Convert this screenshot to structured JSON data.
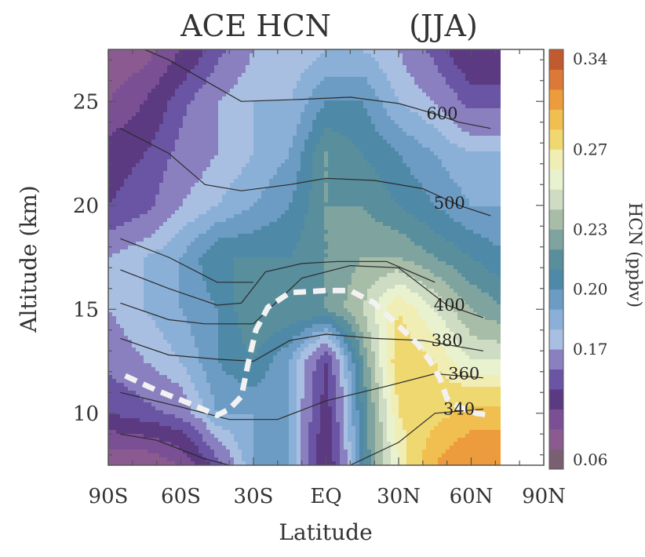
{
  "chart_data": {
    "type": "heatmap",
    "title": {
      "left": "ACE HCN",
      "right": "(JJA)"
    },
    "xlabel": "Latitude",
    "ylabel": "Altitude (km)",
    "xlim": [
      -90,
      90
    ],
    "ylim": [
      7.5,
      27.5
    ],
    "x_ticks": [
      {
        "value": -90,
        "label": "90S"
      },
      {
        "value": -60,
        "label": "60S"
      },
      {
        "value": -30,
        "label": "30S"
      },
      {
        "value": 0,
        "label": "EQ"
      },
      {
        "value": 30,
        "label": "30N"
      },
      {
        "value": 60,
        "label": "60N"
      },
      {
        "value": 90,
        "label": "90N"
      }
    ],
    "y_ticks": [
      {
        "value": 10,
        "label": "10"
      },
      {
        "value": 15,
        "label": "15"
      },
      {
        "value": 20,
        "label": "20"
      },
      {
        "value": 25,
        "label": "25"
      }
    ],
    "colorbar": {
      "label": "HCN (ppbv)",
      "vmin": 0.06,
      "vmax": 0.34,
      "levels": [
        0.06,
        0.08,
        0.1,
        0.12,
        0.14,
        0.155,
        0.17,
        0.18,
        0.19,
        0.2,
        0.21,
        0.22,
        0.23,
        0.24,
        0.25,
        0.26,
        0.27,
        0.285,
        0.3,
        0.32,
        0.34
      ],
      "tick_labels": [
        "0.06",
        "0.17",
        "0.20",
        "0.23",
        "0.27",
        "0.34"
      ],
      "colors": [
        "#7a5f72",
        "#8a5a90",
        "#7b4f94",
        "#5b3a82",
        "#6a55a4",
        "#8a80c0",
        "#a9bfe2",
        "#8ab0d8",
        "#6c9cc4",
        "#4f89a8",
        "#598e9c",
        "#7fa4a0",
        "#a8bda8",
        "#cfdcc4",
        "#e9f2cf",
        "#f1eeb5",
        "#f0d870",
        "#f0bf50",
        "#ec9c3c",
        "#dc7838",
        "#c25a30"
      ]
    },
    "grid_lat": [
      -90,
      -75,
      -60,
      -45,
      -30,
      -15,
      0,
      15,
      30,
      45,
      60,
      75,
      90
    ],
    "grid_alt": [
      7.5,
      10,
      12.5,
      15,
      17.5,
      20,
      22.5,
      25,
      27.5
    ],
    "hcn_grid": [
      [
        0.08,
        0.08,
        0.1,
        0.15,
        0.19,
        0.19,
        0.12,
        0.21,
        0.26,
        0.3,
        0.32,
        0.32,
        null
      ],
      [
        0.14,
        0.15,
        0.16,
        0.19,
        0.19,
        0.19,
        0.13,
        0.21,
        0.27,
        0.28,
        0.29,
        0.29,
        null
      ],
      [
        0.16,
        0.17,
        0.18,
        0.2,
        0.21,
        0.19,
        0.14,
        0.22,
        0.28,
        0.27,
        0.25,
        0.25,
        null
      ],
      [
        0.17,
        0.18,
        0.19,
        0.2,
        0.22,
        0.22,
        0.22,
        0.24,
        0.27,
        0.25,
        0.23,
        0.22,
        null
      ],
      [
        0.17,
        0.18,
        0.19,
        0.21,
        0.21,
        0.21,
        0.22,
        0.23,
        0.23,
        0.22,
        0.21,
        0.2,
        null
      ],
      [
        0.14,
        0.15,
        0.17,
        0.18,
        0.19,
        0.2,
        0.22,
        0.22,
        0.21,
        0.2,
        0.19,
        0.19,
        null
      ],
      [
        0.13,
        0.14,
        0.16,
        0.17,
        0.18,
        0.19,
        0.22,
        0.21,
        0.2,
        0.19,
        0.18,
        0.18,
        null
      ],
      [
        0.1,
        0.12,
        0.15,
        0.17,
        0.18,
        0.18,
        0.2,
        0.2,
        0.18,
        0.17,
        0.15,
        0.15,
        null
      ],
      [
        0.08,
        0.09,
        0.12,
        0.15,
        0.17,
        0.17,
        0.18,
        0.18,
        0.17,
        0.15,
        0.12,
        0.12,
        null
      ]
    ],
    "theta_contours": [
      {
        "label": "340",
        "points": [
          [
            -85,
            9
          ],
          [
            -70,
            8.7
          ],
          [
            -50,
            7.8
          ],
          [
            -40,
            7.5
          ]
        ],
        "label_at": null
      },
      {
        "label": "340",
        "points": [
          [
            10,
            7.5
          ],
          [
            30,
            8.6
          ],
          [
            45,
            10
          ],
          [
            65,
            10.2
          ]
        ],
        "label_at": [
          55,
          10.2
        ]
      },
      {
        "label": "360",
        "points": [
          [
            -85,
            11
          ],
          [
            -60,
            10.3
          ],
          [
            -40,
            9.7
          ],
          [
            -20,
            9.7
          ],
          [
            0,
            10.6
          ],
          [
            25,
            11.3
          ],
          [
            45,
            11.9
          ],
          [
            65,
            11.7
          ]
        ],
        "label_at": [
          57,
          11.9
        ]
      },
      {
        "label": "380",
        "points": [
          [
            -85,
            13.6
          ],
          [
            -65,
            12.8
          ],
          [
            -45,
            12.6
          ],
          [
            -30,
            12.5
          ],
          [
            -15,
            13.5
          ],
          [
            0,
            13.8
          ],
          [
            20,
            13.6
          ],
          [
            40,
            13.5
          ],
          [
            65,
            13.0
          ]
        ],
        "label_at": [
          50,
          13.5
        ]
      },
      {
        "label": "400",
        "points": [
          [
            -85,
            15.3
          ],
          [
            -65,
            14.5
          ],
          [
            -50,
            14.3
          ],
          [
            -30,
            14.3
          ],
          [
            -10,
            16.5
          ],
          [
            10,
            17.1
          ],
          [
            30,
            17.0
          ],
          [
            50,
            15.2
          ],
          [
            65,
            14.6
          ]
        ],
        "label_at": [
          51,
          15.2
        ]
      },
      {
        "label": "",
        "points": [
          [
            -85,
            16.9
          ],
          [
            -65,
            16.0
          ],
          [
            -45,
            15.2
          ],
          [
            -35,
            15.3
          ],
          [
            -25,
            16.8
          ],
          [
            -10,
            17.2
          ],
          [
            5,
            17.3
          ],
          [
            25,
            17.3
          ],
          [
            45,
            16.3
          ]
        ],
        "label_at": null
      },
      {
        "label": "",
        "points": [
          [
            -85,
            18.4
          ],
          [
            -65,
            17.5
          ],
          [
            -45,
            16.3
          ],
          [
            -30,
            16.3
          ]
        ],
        "label_at": null
      },
      {
        "label": "500",
        "points": [
          [
            -85,
            23.7
          ],
          [
            -65,
            22.5
          ],
          [
            -50,
            21.0
          ],
          [
            -35,
            20.7
          ],
          [
            -15,
            21.0
          ],
          [
            0,
            21.3
          ],
          [
            20,
            21.2
          ],
          [
            40,
            20.8
          ],
          [
            55,
            20.0
          ],
          [
            68,
            19.5
          ]
        ],
        "label_at": [
          51,
          20.1
        ]
      },
      {
        "label": "600",
        "points": [
          [
            -85,
            28.0
          ],
          [
            -65,
            27.0
          ],
          [
            -50,
            26.0
          ],
          [
            -35,
            25.0
          ],
          [
            -10,
            25.1
          ],
          [
            10,
            25.2
          ],
          [
            30,
            24.9
          ],
          [
            45,
            24.4
          ],
          [
            55,
            24.0
          ],
          [
            68,
            23.7
          ]
        ],
        "label_at": [
          48,
          24.4
        ]
      }
    ],
    "tropopause": [
      [
        -83,
        11.8
      ],
      [
        -70,
        11.1
      ],
      [
        -55,
        10.4
      ],
      [
        -45,
        9.9
      ],
      [
        -40,
        10.2
      ],
      [
        -35,
        10.8
      ],
      [
        -32,
        12.5
      ],
      [
        -29,
        14.0
      ],
      [
        -24,
        15.1
      ],
      [
        -15,
        15.8
      ],
      [
        0,
        15.9
      ],
      [
        10,
        15.9
      ],
      [
        20,
        15.3
      ],
      [
        30,
        14.2
      ],
      [
        38,
        13.3
      ],
      [
        43,
        12.5
      ],
      [
        47,
        11.7
      ],
      [
        50,
        10.7
      ],
      [
        55,
        10.3
      ],
      [
        62,
        10.0
      ],
      [
        68,
        9.9
      ]
    ]
  }
}
